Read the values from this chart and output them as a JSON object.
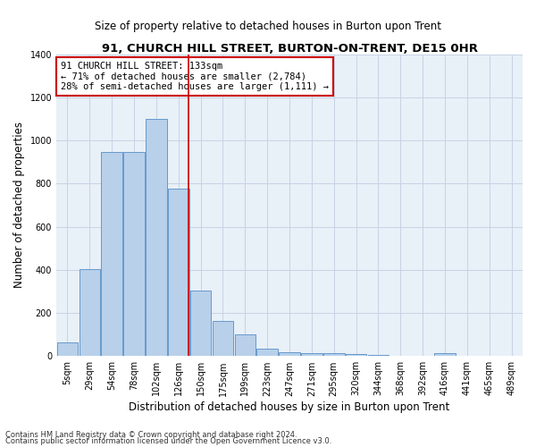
{
  "title1": "91, CHURCH HILL STREET, BURTON-ON-TRENT, DE15 0HR",
  "title2": "Size of property relative to detached houses in Burton upon Trent",
  "xlabel": "Distribution of detached houses by size in Burton upon Trent",
  "ylabel": "Number of detached properties",
  "footnote1": "Contains HM Land Registry data © Crown copyright and database right 2024.",
  "footnote2": "Contains public sector information licensed under the Open Government Licence v3.0.",
  "bar_labels": [
    "5sqm",
    "29sqm",
    "54sqm",
    "78sqm",
    "102sqm",
    "126sqm",
    "150sqm",
    "175sqm",
    "199sqm",
    "223sqm",
    "247sqm",
    "271sqm",
    "295sqm",
    "320sqm",
    "344sqm",
    "368sqm",
    "392sqm",
    "416sqm",
    "441sqm",
    "465sqm",
    "489sqm"
  ],
  "bar_values": [
    65,
    405,
    945,
    945,
    1100,
    775,
    305,
    165,
    100,
    35,
    18,
    15,
    15,
    10,
    5,
    3,
    3,
    12,
    2,
    2,
    2
  ],
  "bar_color": "#b8d0ea",
  "bar_edge_color": "#6699cc",
  "grid_color": "#c8d4e4",
  "background_color": "#e8f0f8",
  "annotation_line1": "91 CHURCH HILL STREET: 133sqm",
  "annotation_line2": "← 71% of detached houses are smaller (2,784)",
  "annotation_line3": "28% of semi-detached houses are larger (1,111) →",
  "annotation_box_color": "#cc0000",
  "vline_x": 5.47,
  "ylim": [
    0,
    1400
  ],
  "yticks": [
    0,
    200,
    400,
    600,
    800,
    1000,
    1200,
    1400
  ],
  "title1_fontsize": 9.5,
  "title2_fontsize": 8.5,
  "xlabel_fontsize": 8.5,
  "ylabel_fontsize": 8.5,
  "tick_fontsize": 7.0,
  "footnote_fontsize": 6.0
}
